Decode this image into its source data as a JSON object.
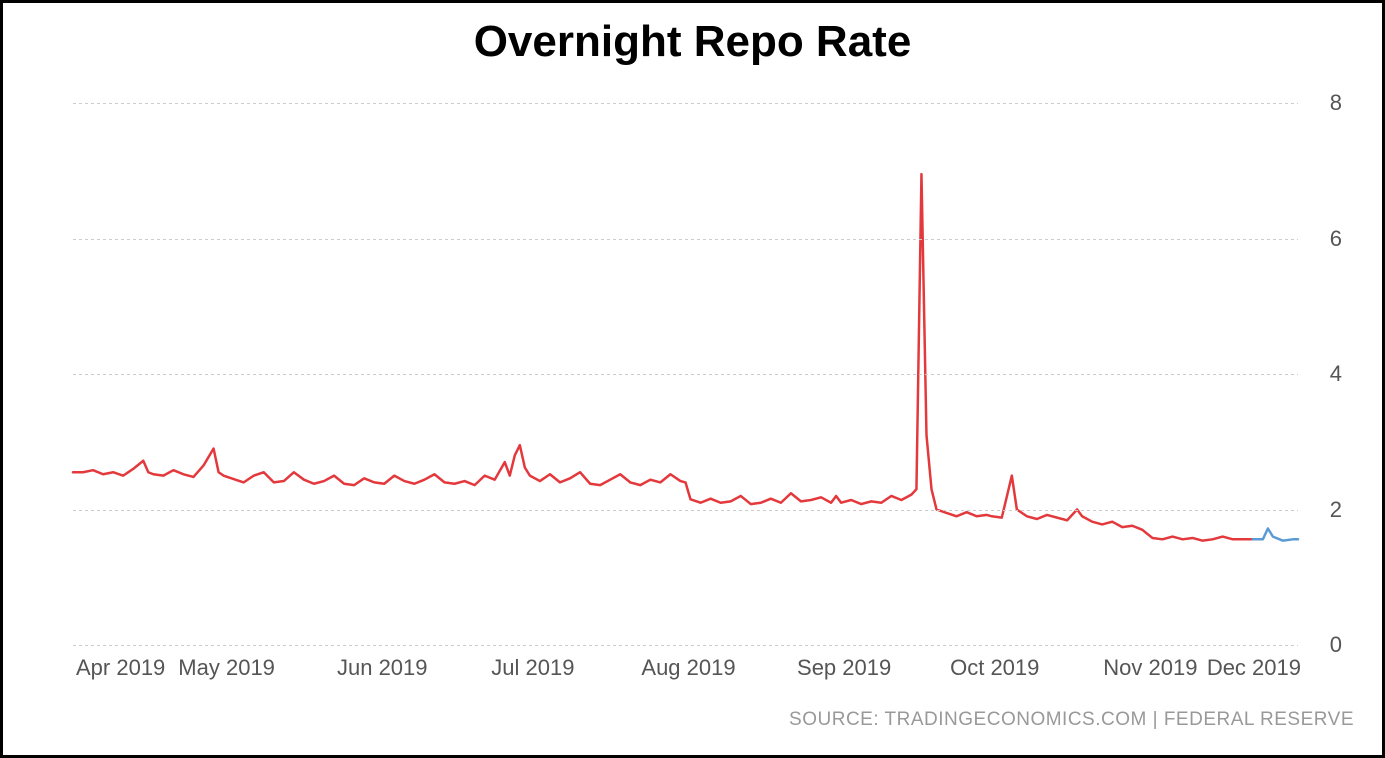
{
  "chart": {
    "type": "line",
    "title": "Overnight Repo Rate",
    "title_fontsize": 44,
    "title_color": "#000000",
    "background_color": "#ffffff",
    "border_color": "#000000",
    "border_width": 3,
    "grid_color": "#cccccc",
    "axis_label_color": "#555555",
    "tick_fontsize": 22,
    "x_axis": {
      "min_index": 0,
      "max_index": 244,
      "ticks": [
        {
          "i": 0,
          "label": "Apr 2019"
        },
        {
          "i": 30,
          "label": "May 2019"
        },
        {
          "i": 61,
          "label": "Jun 2019"
        },
        {
          "i": 91,
          "label": "Jul 2019"
        },
        {
          "i": 122,
          "label": "Aug 2019"
        },
        {
          "i": 153,
          "label": "Sep 2019"
        },
        {
          "i": 183,
          "label": "Oct 2019"
        },
        {
          "i": 214,
          "label": "Nov 2019"
        },
        {
          "i": 244,
          "label": "Dec 2019"
        }
      ]
    },
    "y_axis": {
      "min": 0,
      "max": 8,
      "ticks": [
        0,
        2,
        4,
        6,
        8
      ],
      "position": "right"
    },
    "series": [
      {
        "name": "repo-rate-main",
        "color": "#e4393c",
        "line_width": 2.5,
        "data": [
          [
            0,
            2.55
          ],
          [
            2,
            2.55
          ],
          [
            4,
            2.58
          ],
          [
            6,
            2.52
          ],
          [
            8,
            2.55
          ],
          [
            10,
            2.5
          ],
          [
            12,
            2.6
          ],
          [
            14,
            2.72
          ],
          [
            15,
            2.55
          ],
          [
            16,
            2.52
          ],
          [
            18,
            2.5
          ],
          [
            20,
            2.58
          ],
          [
            22,
            2.52
          ],
          [
            24,
            2.48
          ],
          [
            26,
            2.65
          ],
          [
            28,
            2.9
          ],
          [
            29,
            2.55
          ],
          [
            30,
            2.5
          ],
          [
            32,
            2.45
          ],
          [
            34,
            2.4
          ],
          [
            36,
            2.5
          ],
          [
            38,
            2.55
          ],
          [
            40,
            2.4
          ],
          [
            42,
            2.42
          ],
          [
            44,
            2.55
          ],
          [
            46,
            2.44
          ],
          [
            48,
            2.38
          ],
          [
            50,
            2.42
          ],
          [
            52,
            2.5
          ],
          [
            54,
            2.38
          ],
          [
            56,
            2.36
          ],
          [
            58,
            2.46
          ],
          [
            60,
            2.4
          ],
          [
            62,
            2.38
          ],
          [
            64,
            2.5
          ],
          [
            66,
            2.42
          ],
          [
            68,
            2.38
          ],
          [
            70,
            2.44
          ],
          [
            72,
            2.52
          ],
          [
            74,
            2.4
          ],
          [
            76,
            2.38
          ],
          [
            78,
            2.42
          ],
          [
            80,
            2.36
          ],
          [
            82,
            2.5
          ],
          [
            84,
            2.44
          ],
          [
            86,
            2.7
          ],
          [
            87,
            2.5
          ],
          [
            88,
            2.8
          ],
          [
            89,
            2.95
          ],
          [
            90,
            2.62
          ],
          [
            91,
            2.5
          ],
          [
            93,
            2.42
          ],
          [
            95,
            2.52
          ],
          [
            97,
            2.4
          ],
          [
            99,
            2.46
          ],
          [
            101,
            2.55
          ],
          [
            103,
            2.38
          ],
          [
            105,
            2.36
          ],
          [
            107,
            2.44
          ],
          [
            109,
            2.52
          ],
          [
            111,
            2.4
          ],
          [
            113,
            2.36
          ],
          [
            115,
            2.44
          ],
          [
            117,
            2.4
          ],
          [
            119,
            2.52
          ],
          [
            121,
            2.42
          ],
          [
            122,
            2.4
          ],
          [
            123,
            2.15
          ],
          [
            125,
            2.1
          ],
          [
            127,
            2.16
          ],
          [
            129,
            2.1
          ],
          [
            131,
            2.12
          ],
          [
            133,
            2.2
          ],
          [
            135,
            2.08
          ],
          [
            137,
            2.1
          ],
          [
            139,
            2.16
          ],
          [
            141,
            2.1
          ],
          [
            143,
            2.24
          ],
          [
            145,
            2.12
          ],
          [
            147,
            2.14
          ],
          [
            149,
            2.18
          ],
          [
            151,
            2.1
          ],
          [
            152,
            2.2
          ],
          [
            153,
            2.1
          ],
          [
            155,
            2.14
          ],
          [
            157,
            2.08
          ],
          [
            159,
            2.12
          ],
          [
            161,
            2.1
          ],
          [
            163,
            2.2
          ],
          [
            165,
            2.14
          ],
          [
            167,
            2.22
          ],
          [
            168,
            2.3
          ],
          [
            169,
            6.95
          ],
          [
            170,
            3.1
          ],
          [
            171,
            2.3
          ],
          [
            172,
            2.0
          ],
          [
            174,
            1.95
          ],
          [
            176,
            1.9
          ],
          [
            178,
            1.96
          ],
          [
            180,
            1.9
          ],
          [
            182,
            1.92
          ],
          [
            183,
            1.9
          ],
          [
            185,
            1.88
          ],
          [
            187,
            2.5
          ],
          [
            188,
            2.0
          ],
          [
            190,
            1.9
          ],
          [
            192,
            1.86
          ],
          [
            194,
            1.92
          ],
          [
            196,
            1.88
          ],
          [
            198,
            1.84
          ],
          [
            200,
            2.0
          ],
          [
            201,
            1.9
          ],
          [
            203,
            1.82
          ],
          [
            205,
            1.78
          ],
          [
            207,
            1.82
          ],
          [
            209,
            1.74
          ],
          [
            211,
            1.76
          ],
          [
            213,
            1.7
          ],
          [
            215,
            1.58
          ],
          [
            217,
            1.56
          ],
          [
            219,
            1.6
          ],
          [
            221,
            1.56
          ],
          [
            223,
            1.58
          ],
          [
            225,
            1.54
          ],
          [
            227,
            1.56
          ],
          [
            229,
            1.6
          ],
          [
            231,
            1.56
          ],
          [
            233,
            1.56
          ],
          [
            235,
            1.56
          ]
        ]
      },
      {
        "name": "repo-rate-recent",
        "color": "#5b9bd5",
        "line_width": 2.5,
        "data": [
          [
            235,
            1.56
          ],
          [
            237,
            1.56
          ],
          [
            238,
            1.72
          ],
          [
            239,
            1.6
          ],
          [
            241,
            1.54
          ],
          [
            243,
            1.56
          ],
          [
            244,
            1.56
          ]
        ]
      }
    ],
    "source": {
      "text": "SOURCE: TRADINGECONOMICS.COM | FEDERAL RESERVE",
      "color": "#999999",
      "fontsize": 19
    }
  }
}
